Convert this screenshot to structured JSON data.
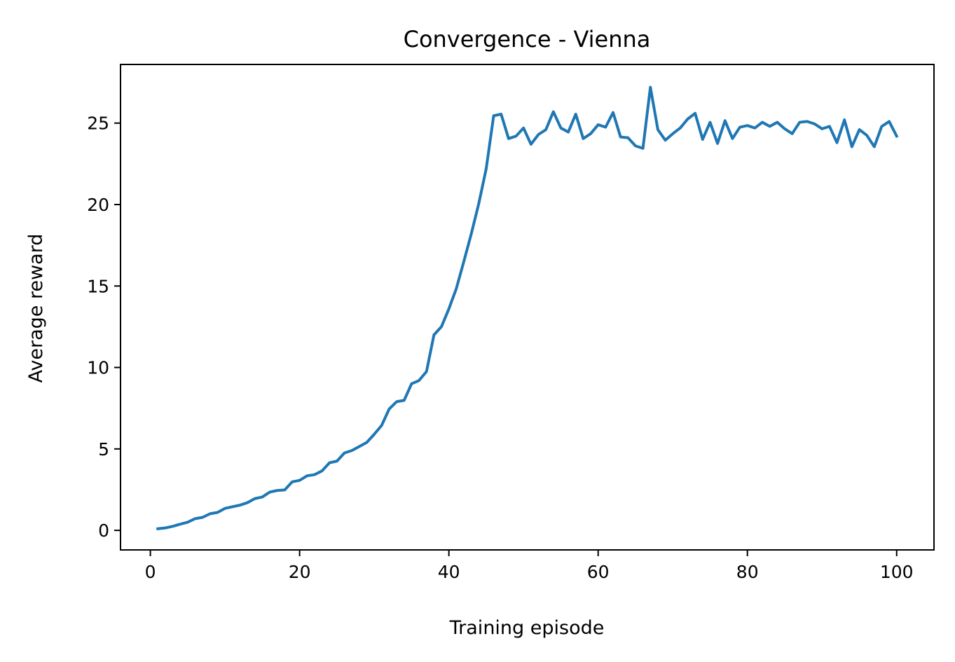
{
  "chart_data": {
    "type": "line",
    "title": "Convergence - Vienna",
    "xlabel": "Training episode",
    "ylabel": "Average reward",
    "xlim": [
      -4,
      105
    ],
    "ylim": [
      -1.2,
      28.6
    ],
    "xticks": [
      0,
      20,
      40,
      60,
      80,
      100
    ],
    "yticks": [
      0,
      5,
      10,
      15,
      20,
      25
    ],
    "grid": false,
    "series": [
      {
        "color": "#1f77b4",
        "x": [
          1,
          2,
          3,
          4,
          5,
          6,
          7,
          8,
          9,
          10,
          11,
          12,
          13,
          14,
          15,
          16,
          17,
          18,
          19,
          20,
          21,
          22,
          23,
          24,
          25,
          26,
          27,
          28,
          29,
          30,
          31,
          32,
          33,
          34,
          35,
          36,
          37,
          38,
          39,
          40,
          41,
          42,
          43,
          44,
          45,
          46,
          47,
          48,
          49,
          50,
          51,
          52,
          53,
          54,
          55,
          56,
          57,
          58,
          59,
          60,
          61,
          62,
          63,
          64,
          65,
          66,
          67,
          68,
          69,
          70,
          71,
          72,
          73,
          74,
          75,
          76,
          77,
          78,
          79,
          80,
          81,
          82,
          83,
          84,
          85,
          86,
          87,
          88,
          89,
          90,
          91,
          92,
          93,
          94,
          95,
          96,
          97,
          98,
          99,
          100
        ],
        "y": [
          0.1,
          0.15,
          0.25,
          0.38,
          0.5,
          0.72,
          0.8,
          1.02,
          1.1,
          1.35,
          1.45,
          1.55,
          1.7,
          1.95,
          2.05,
          2.35,
          2.45,
          2.48,
          2.98,
          3.07,
          3.35,
          3.42,
          3.65,
          4.15,
          4.25,
          4.75,
          4.9,
          5.15,
          5.4,
          5.9,
          6.45,
          7.45,
          7.9,
          7.98,
          9.0,
          9.2,
          9.75,
          12.0,
          12.5,
          13.6,
          14.85,
          16.5,
          18.2,
          20.05,
          22.2,
          25.45,
          25.55,
          24.05,
          24.2,
          24.7,
          23.7,
          24.3,
          24.6,
          25.7,
          24.7,
          24.45,
          25.55,
          24.05,
          24.35,
          24.9,
          24.75,
          25.65,
          24.15,
          24.1,
          23.6,
          23.45,
          27.2,
          24.6,
          23.95,
          24.35,
          24.7,
          25.25,
          25.6,
          24.0,
          25.05,
          23.75,
          25.15,
          24.05,
          24.75,
          24.85,
          24.7,
          25.05,
          24.8,
          25.05,
          24.65,
          24.35,
          25.05,
          25.1,
          24.95,
          24.65,
          24.8,
          23.8,
          25.2,
          23.55,
          24.6,
          24.25,
          23.55,
          24.8,
          25.1,
          24.2
        ]
      }
    ]
  }
}
